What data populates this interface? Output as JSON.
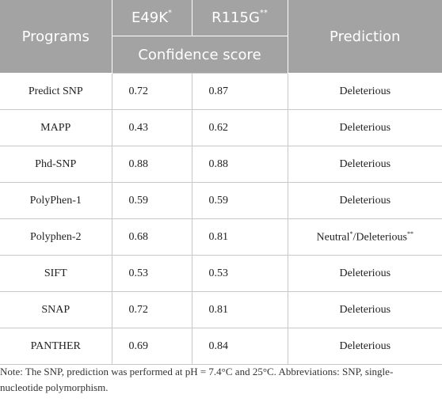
{
  "header": {
    "programs": "Programs",
    "e49k": "E49K",
    "e49k_mark": "*",
    "r115g": "R115G",
    "r115g_mark": "**",
    "prediction": "Prediction",
    "confidence": "Confidence score"
  },
  "rows": [
    {
      "program": "Predict SNP",
      "e49k": "0.72",
      "r115g": "0.87",
      "prediction": "Deleterious"
    },
    {
      "program": "MAPP",
      "e49k": "0.43",
      "r115g": "0.62",
      "prediction": "Deleterious"
    },
    {
      "program": "Phd-SNP",
      "e49k": "0.88",
      "r115g": "0.88",
      "prediction": "Deleterious"
    },
    {
      "program": "PolyPhen-1",
      "e49k": "0.59",
      "r115g": "0.59",
      "prediction": "Deleterious"
    },
    {
      "program": "Polyphen-2",
      "e49k": "0.68",
      "r115g": "0.81",
      "prediction_a": "Neutral",
      "prediction_a_mark": "*",
      "prediction_sep": "/",
      "prediction_b": "Deleterious",
      "prediction_b_mark": "**"
    },
    {
      "program": "SIFT",
      "e49k": "0.53",
      "r115g": "0.53",
      "prediction": "Deleterious"
    },
    {
      "program": "SNAP",
      "e49k": "0.72",
      "r115g": "0.81",
      "prediction": "Deleterious"
    },
    {
      "program": "PANTHER",
      "e49k": "0.69",
      "r115g": "0.84",
      "prediction": "Deleterious"
    }
  ],
  "note": "Note: The SNP, prediction was performed at pH = 7.4°C and 25°C. Abbreviations: SNP, single-nucleotide polymorphism."
}
